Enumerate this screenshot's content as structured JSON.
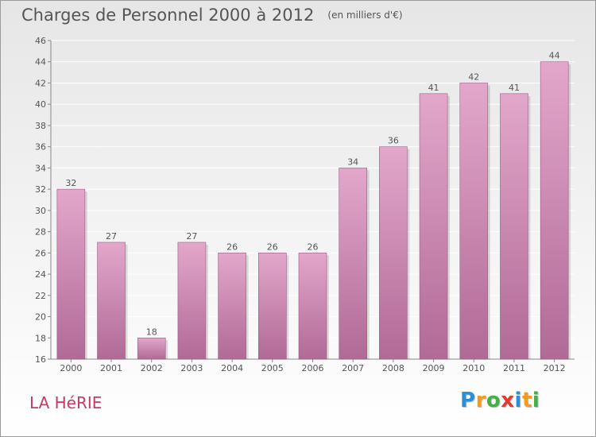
{
  "chart_data": {
    "type": "bar",
    "title": "Charges de Personnel 2000 à 2012",
    "subtitle": "(en milliers d'€)",
    "categories": [
      "2000",
      "2001",
      "2002",
      "2003",
      "2004",
      "2005",
      "2006",
      "2007",
      "2008",
      "2009",
      "2010",
      "2011",
      "2012"
    ],
    "values": [
      32,
      27,
      18,
      27,
      26,
      26,
      26,
      34,
      36,
      41,
      42,
      41,
      44
    ],
    "value_labels": [
      "32",
      "27",
      "18",
      "27",
      "26",
      "26",
      "26",
      "34",
      "36",
      "41",
      "42",
      "41",
      "44"
    ],
    "ylim": [
      16,
      46
    ],
    "yticks": [
      16,
      18,
      20,
      22,
      24,
      26,
      28,
      30,
      32,
      34,
      36,
      38,
      40,
      42,
      44,
      46
    ],
    "grid": true,
    "colors": {
      "bar_top": "#e3a7cb",
      "bar_bottom": "#b06a96",
      "grid": "#ffffff",
      "text": "#555555"
    }
  },
  "commune": "LA HéRIE",
  "logo": {
    "letters": [
      "P",
      "r",
      "o",
      "x",
      "i",
      "t",
      "i"
    ],
    "colors": [
      "#2d8fd6",
      "#f39a1f",
      "#43b043",
      "#e23a2f",
      "#2d8fd6",
      "#f39a1f",
      "#43b043"
    ]
  }
}
